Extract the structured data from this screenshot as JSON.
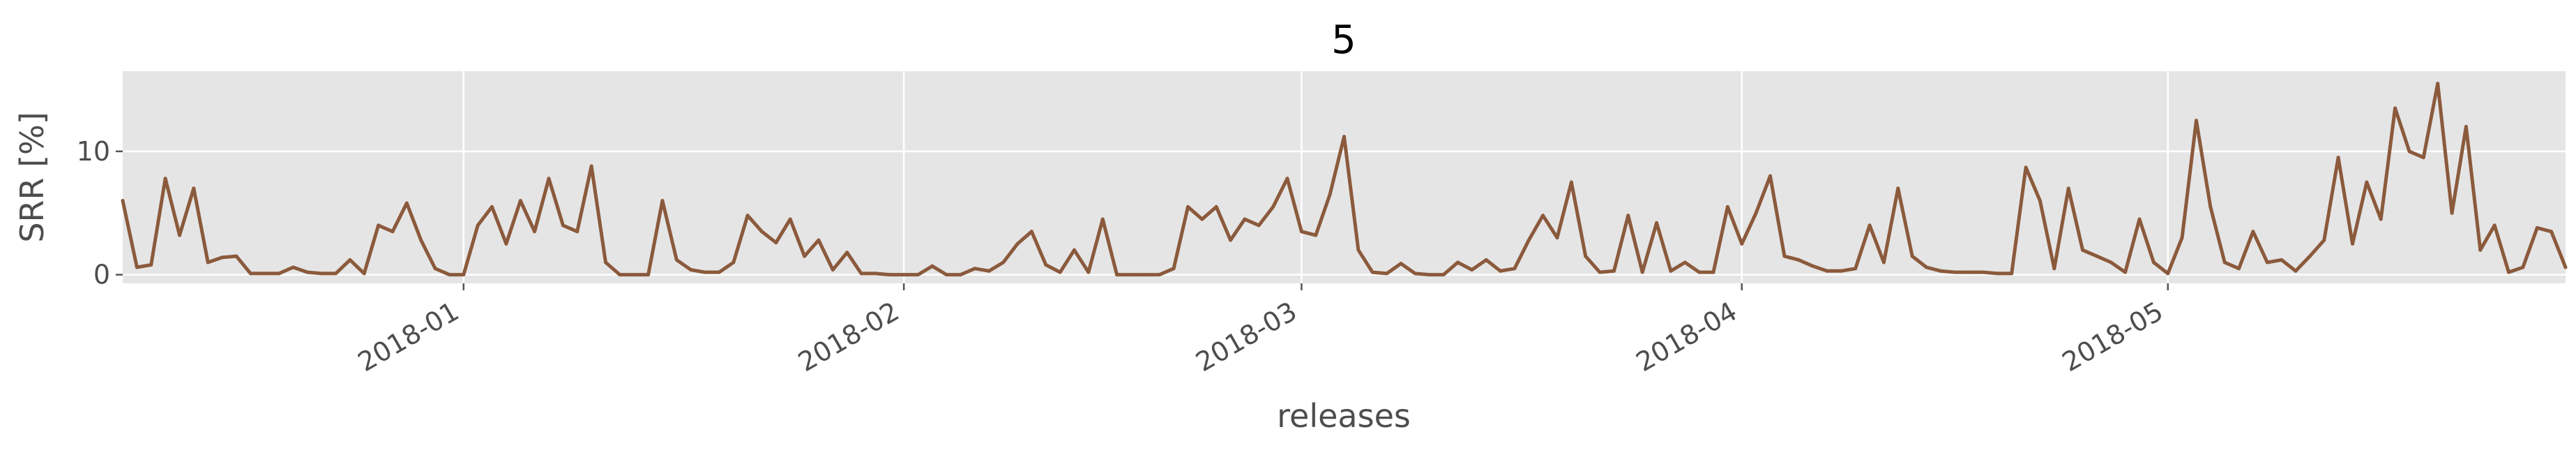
{
  "chart_data": {
    "type": "line",
    "title": "5",
    "xlabel": "releases",
    "ylabel": "SRR [%]",
    "x_start": "2017-12-08T00:00",
    "x_end": "2018-05-29T00:00",
    "xlim": [
      "2017-12-08",
      "2018-05-29"
    ],
    "ylim": [
      -0.7,
      16.5
    ],
    "x_ticks": [
      {
        "date": "2018-01-01",
        "label": "2018-01"
      },
      {
        "date": "2018-02-01",
        "label": "2018-02"
      },
      {
        "date": "2018-03-01",
        "label": "2018-03"
      },
      {
        "date": "2018-04-01",
        "label": "2018-04"
      },
      {
        "date": "2018-05-01",
        "label": "2018-05"
      }
    ],
    "y_ticks": [
      {
        "value": 0,
        "label": "0"
      },
      {
        "value": 10,
        "label": "10"
      }
    ],
    "grid": true,
    "legend": "none",
    "series": [
      {
        "color": "#8b5a3c",
        "points": [
          [
            "2017-12-08",
            6.0
          ],
          [
            "2017-12-09",
            0.6
          ],
          [
            "2017-12-10",
            0.8
          ],
          [
            "2017-12-11",
            7.8
          ],
          [
            "2017-12-12",
            3.2
          ],
          [
            "2017-12-13",
            7.0
          ],
          [
            "2017-12-14",
            1.0
          ],
          [
            "2017-12-15",
            1.4
          ],
          [
            "2017-12-16",
            1.5
          ],
          [
            "2017-12-17",
            0.1
          ],
          [
            "2017-12-18",
            0.1
          ],
          [
            "2017-12-19",
            0.1
          ],
          [
            "2017-12-20",
            0.6
          ],
          [
            "2017-12-21",
            0.2
          ],
          [
            "2017-12-22",
            0.1
          ],
          [
            "2017-12-23",
            0.1
          ],
          [
            "2017-12-24",
            1.2
          ],
          [
            "2017-12-25",
            0.1
          ],
          [
            "2017-12-26",
            4.0
          ],
          [
            "2017-12-27",
            3.5
          ],
          [
            "2017-12-28",
            5.8
          ],
          [
            "2017-12-29",
            2.8
          ],
          [
            "2017-12-30",
            0.5
          ],
          [
            "2017-12-31",
            0.0
          ],
          [
            "2018-01-01",
            0.0
          ],
          [
            "2018-01-02",
            4.0
          ],
          [
            "2018-01-03",
            5.5
          ],
          [
            "2018-01-04",
            2.5
          ],
          [
            "2018-01-05",
            6.0
          ],
          [
            "2018-01-06",
            3.5
          ],
          [
            "2018-01-07",
            7.8
          ],
          [
            "2018-01-08",
            4.0
          ],
          [
            "2018-01-09",
            3.5
          ],
          [
            "2018-01-10",
            8.8
          ],
          [
            "2018-01-11",
            1.0
          ],
          [
            "2018-01-12",
            0.0
          ],
          [
            "2018-01-13",
            0.0
          ],
          [
            "2018-01-14",
            0.0
          ],
          [
            "2018-01-15",
            6.0
          ],
          [
            "2018-01-16",
            1.2
          ],
          [
            "2018-01-17",
            0.4
          ],
          [
            "2018-01-18",
            0.2
          ],
          [
            "2018-01-19",
            0.2
          ],
          [
            "2018-01-20",
            1.0
          ],
          [
            "2018-01-21",
            4.8
          ],
          [
            "2018-01-22",
            3.5
          ],
          [
            "2018-01-23",
            2.6
          ],
          [
            "2018-01-24",
            4.5
          ],
          [
            "2018-01-25",
            1.5
          ],
          [
            "2018-01-26",
            2.8
          ],
          [
            "2018-01-27",
            0.4
          ],
          [
            "2018-01-28",
            1.8
          ],
          [
            "2018-01-29",
            0.1
          ],
          [
            "2018-01-30",
            0.1
          ],
          [
            "2018-01-31",
            0.0
          ],
          [
            "2018-02-01",
            0.0
          ],
          [
            "2018-02-02",
            0.0
          ],
          [
            "2018-02-03",
            0.7
          ],
          [
            "2018-02-04",
            0.0
          ],
          [
            "2018-02-05",
            0.0
          ],
          [
            "2018-02-06",
            0.5
          ],
          [
            "2018-02-07",
            0.3
          ],
          [
            "2018-02-08",
            1.0
          ],
          [
            "2018-02-09",
            2.5
          ],
          [
            "2018-02-10",
            3.5
          ],
          [
            "2018-02-11",
            0.8
          ],
          [
            "2018-02-12",
            0.2
          ],
          [
            "2018-02-13",
            2.0
          ],
          [
            "2018-02-14",
            0.2
          ],
          [
            "2018-02-15",
            4.5
          ],
          [
            "2018-02-16",
            0.0
          ],
          [
            "2018-02-17",
            0.0
          ],
          [
            "2018-02-18",
            0.0
          ],
          [
            "2018-02-19",
            0.0
          ],
          [
            "2018-02-20",
            0.5
          ],
          [
            "2018-02-21",
            5.5
          ],
          [
            "2018-02-22",
            4.5
          ],
          [
            "2018-02-23",
            5.5
          ],
          [
            "2018-02-24",
            2.8
          ],
          [
            "2018-02-25",
            4.5
          ],
          [
            "2018-02-26",
            4.0
          ],
          [
            "2018-02-27",
            5.5
          ],
          [
            "2018-02-28",
            7.8
          ],
          [
            "2018-03-01",
            3.5
          ],
          [
            "2018-03-02",
            3.2
          ],
          [
            "2018-03-03",
            6.5
          ],
          [
            "2018-03-04",
            11.2
          ],
          [
            "2018-03-05",
            2.0
          ],
          [
            "2018-03-06",
            0.2
          ],
          [
            "2018-03-07",
            0.1
          ],
          [
            "2018-03-08",
            0.9
          ],
          [
            "2018-03-09",
            0.1
          ],
          [
            "2018-03-10",
            0.0
          ],
          [
            "2018-03-11",
            0.0
          ],
          [
            "2018-03-12",
            1.0
          ],
          [
            "2018-03-13",
            0.4
          ],
          [
            "2018-03-14",
            1.2
          ],
          [
            "2018-03-15",
            0.3
          ],
          [
            "2018-03-16",
            0.5
          ],
          [
            "2018-03-17",
            2.8
          ],
          [
            "2018-03-18",
            4.8
          ],
          [
            "2018-03-19",
            3.0
          ],
          [
            "2018-03-20",
            7.5
          ],
          [
            "2018-03-21",
            1.5
          ],
          [
            "2018-03-22",
            0.2
          ],
          [
            "2018-03-23",
            0.3
          ],
          [
            "2018-03-24",
            4.8
          ],
          [
            "2018-03-25",
            0.2
          ],
          [
            "2018-03-26",
            4.2
          ],
          [
            "2018-03-27",
            0.3
          ],
          [
            "2018-03-28",
            1.0
          ],
          [
            "2018-03-29",
            0.2
          ],
          [
            "2018-03-30",
            0.2
          ],
          [
            "2018-03-31",
            5.5
          ],
          [
            "2018-04-01",
            2.5
          ],
          [
            "2018-04-02",
            5.0
          ],
          [
            "2018-04-03",
            8.0
          ],
          [
            "2018-04-04",
            1.5
          ],
          [
            "2018-04-05",
            1.2
          ],
          [
            "2018-04-06",
            0.7
          ],
          [
            "2018-04-07",
            0.3
          ],
          [
            "2018-04-08",
            0.3
          ],
          [
            "2018-04-09",
            0.5
          ],
          [
            "2018-04-10",
            4.0
          ],
          [
            "2018-04-11",
            1.0
          ],
          [
            "2018-04-12",
            7.0
          ],
          [
            "2018-04-13",
            1.5
          ],
          [
            "2018-04-14",
            0.6
          ],
          [
            "2018-04-15",
            0.3
          ],
          [
            "2018-04-16",
            0.2
          ],
          [
            "2018-04-17",
            0.2
          ],
          [
            "2018-04-18",
            0.2
          ],
          [
            "2018-04-19",
            0.1
          ],
          [
            "2018-04-20",
            0.1
          ],
          [
            "2018-04-21",
            8.7
          ],
          [
            "2018-04-22",
            6.0
          ],
          [
            "2018-04-23",
            0.5
          ],
          [
            "2018-04-24",
            7.0
          ],
          [
            "2018-04-25",
            2.0
          ],
          [
            "2018-04-26",
            1.5
          ],
          [
            "2018-04-27",
            1.0
          ],
          [
            "2018-04-28",
            0.2
          ],
          [
            "2018-04-29",
            4.5
          ],
          [
            "2018-04-30",
            1.0
          ],
          [
            "2018-05-01",
            0.1
          ],
          [
            "2018-05-02",
            3.0
          ],
          [
            "2018-05-03",
            12.5
          ],
          [
            "2018-05-04",
            5.5
          ],
          [
            "2018-05-05",
            1.0
          ],
          [
            "2018-05-06",
            0.5
          ],
          [
            "2018-05-07",
            3.5
          ],
          [
            "2018-05-08",
            1.0
          ],
          [
            "2018-05-09",
            1.2
          ],
          [
            "2018-05-10",
            0.3
          ],
          [
            "2018-05-11",
            1.5
          ],
          [
            "2018-05-12",
            2.8
          ],
          [
            "2018-05-13",
            9.5
          ],
          [
            "2018-05-14",
            2.5
          ],
          [
            "2018-05-15",
            7.5
          ],
          [
            "2018-05-16",
            4.5
          ],
          [
            "2018-05-17",
            13.5
          ],
          [
            "2018-05-18",
            10.0
          ],
          [
            "2018-05-19",
            9.5
          ],
          [
            "2018-05-20",
            15.5
          ],
          [
            "2018-05-21",
            5.0
          ],
          [
            "2018-05-22",
            12.0
          ],
          [
            "2018-05-23",
            2.0
          ],
          [
            "2018-05-24",
            4.0
          ],
          [
            "2018-05-25",
            0.2
          ],
          [
            "2018-05-26",
            0.6
          ],
          [
            "2018-05-27",
            3.8
          ],
          [
            "2018-05-28",
            3.5
          ],
          [
            "2018-05-29",
            0.6
          ]
        ]
      }
    ]
  }
}
